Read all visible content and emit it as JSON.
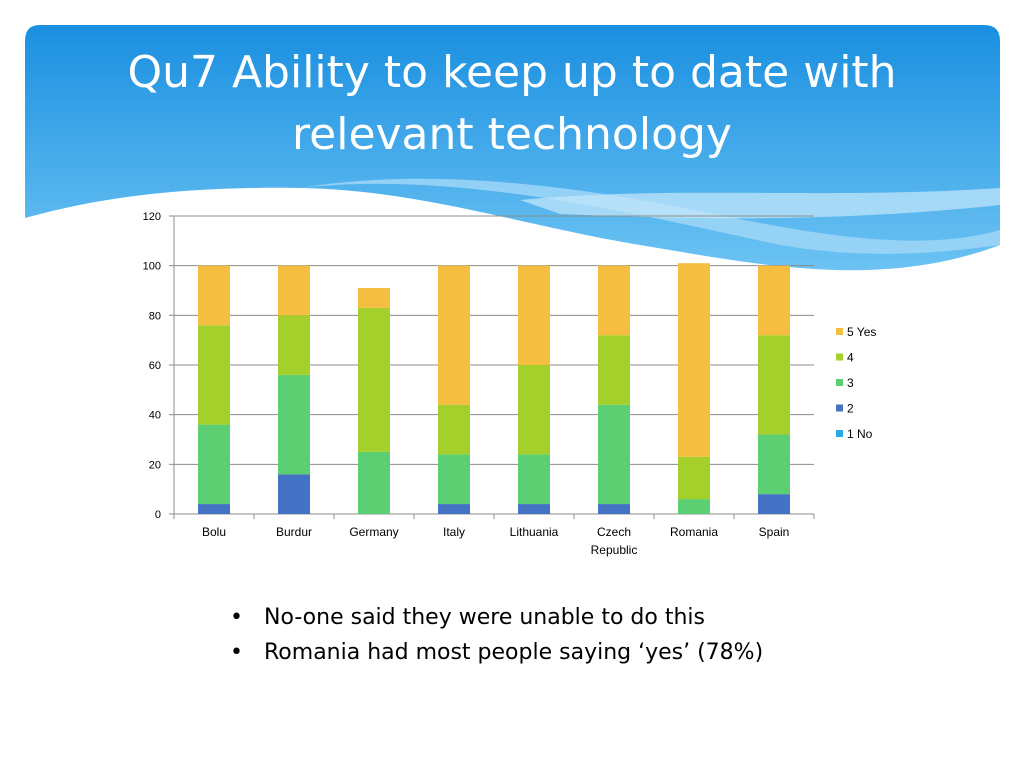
{
  "slide": {
    "title": "Qu7 Ability to keep up to date with relevant technology",
    "bullets": [
      "No-one said they were unable to do this",
      "Romania had most people saying ‘yes’ (78%)"
    ],
    "bullet_glyph": "•",
    "colors": {
      "banner_dark": "#1a8fe0",
      "banner_light": "#9fd6f7",
      "title_text": "#ffffff"
    }
  },
  "chart_data": {
    "type": "bar",
    "stacked": true,
    "categories": [
      "Bolu",
      "Burdur",
      "Germany",
      "Italy",
      "Lithuania",
      "Czech Republic",
      "Romania",
      "Spain"
    ],
    "category_lines": [
      [
        "Bolu"
      ],
      [
        "Burdur"
      ],
      [
        "Germany"
      ],
      [
        "Italy"
      ],
      [
        "Lithuania"
      ],
      [
        "Czech",
        "Republic"
      ],
      [
        "Romania"
      ],
      [
        "Spain"
      ]
    ],
    "series": [
      {
        "name": "1 No",
        "color": "#2aa8e8",
        "values": [
          0,
          0,
          0,
          0,
          0,
          0,
          0,
          0
        ]
      },
      {
        "name": "2",
        "color": "#4472c4",
        "values": [
          4,
          16,
          0,
          4,
          4,
          4,
          0,
          8
        ]
      },
      {
        "name": "3",
        "color": "#5ccf72",
        "values": [
          32,
          40,
          25,
          20,
          20,
          40,
          6,
          24
        ]
      },
      {
        "name": "4",
        "color": "#a5cf2a",
        "values": [
          40,
          24,
          58,
          20,
          36,
          28,
          17,
          40
        ]
      },
      {
        "name": "5 Yes",
        "color": "#f5be41",
        "values": [
          24,
          20,
          8,
          56,
          40,
          28,
          78,
          28
        ]
      }
    ],
    "ylim": [
      0,
      120
    ],
    "yticks": [
      0,
      20,
      40,
      60,
      80,
      100,
      120
    ],
    "grid": true,
    "legend": "right"
  }
}
